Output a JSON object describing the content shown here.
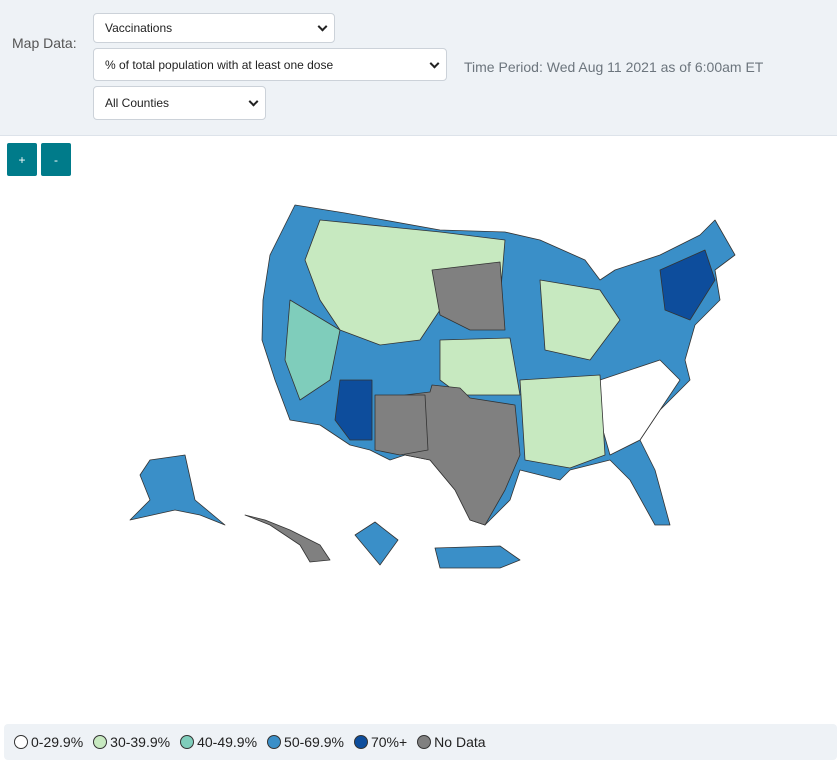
{
  "filters": {
    "label": "Map Data:",
    "dataset": "Vaccinations",
    "metric": "% of total population with at least one dose",
    "scope": "All Counties",
    "time_period": "Time Period: Wed Aug 11 2021 as of 6:00am ET"
  },
  "zoom": {
    "in": "+",
    "out": "-"
  },
  "legend": [
    {
      "label": "0-29.9%",
      "color": "#ffffff"
    },
    {
      "label": "30-39.9%",
      "color": "#c7e9c0"
    },
    {
      "label": "40-49.9%",
      "color": "#7fcdbb"
    },
    {
      "label": "50-69.9%",
      "color": "#3a8fc8"
    },
    {
      "label": "70%+",
      "color": "#0d4d9c"
    },
    {
      "label": "No Data",
      "color": "#808080"
    }
  ]
}
